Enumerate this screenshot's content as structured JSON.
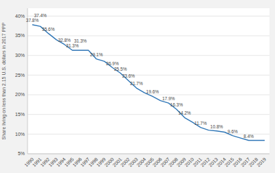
{
  "chart_data": {
    "type": "line",
    "y_label": "Share living on less than 2.15 U.S. dollars in 2017 PPP",
    "x": [
      1990,
      1991,
      1992,
      1993,
      1994,
      1995,
      1996,
      1997,
      1998,
      1999,
      2000,
      2001,
      2002,
      2003,
      2004,
      2005,
      2006,
      2007,
      2008,
      2009,
      2010,
      2011,
      2012,
      2013,
      2014,
      2015,
      2016,
      2017,
      2018,
      2019
    ],
    "values": [
      37.8,
      37.4,
      35.6,
      34.0,
      32.8,
      31.3,
      31.3,
      31.3,
      29.1,
      28.5,
      26.9,
      25.5,
      23.6,
      21.7,
      20.5,
      19.6,
      18.5,
      17.9,
      16.3,
      14.2,
      13.0,
      11.7,
      11.0,
      10.8,
      10.5,
      9.6,
      9.0,
      8.4,
      8.4,
      8.4
    ],
    "value_labels": [
      "37.8%",
      "37.4%",
      "35.6%",
      null,
      "32.8%",
      "31.3%",
      "31.3%",
      null,
      "29.1%",
      null,
      "26.9%",
      "25.5%",
      "23.6%",
      "21.7%",
      null,
      "19.6%",
      null,
      "17.9%",
      "16.3%",
      "14.2%",
      null,
      "11.7%",
      null,
      "10.8%",
      null,
      "9.6%",
      null,
      "8.4%",
      null,
      null
    ],
    "data_labels": true,
    "color": "#2e75b6",
    "xlim": [
      1989.4,
      2019.6
    ],
    "xticks": [
      1990,
      1991,
      1992,
      1993,
      1994,
      1995,
      1996,
      1997,
      1998,
      1999,
      2000,
      2001,
      2002,
      2003,
      2004,
      2005,
      2006,
      2007,
      2008,
      2009,
      2010,
      2011,
      2012,
      2013,
      2014,
      2015,
      2016,
      2017,
      2018,
      2019
    ],
    "ylim": [
      5,
      42
    ],
    "yticks": [
      {
        "value": 5,
        "label": "5%"
      },
      {
        "value": 10,
        "label": "10%"
      },
      {
        "value": 15,
        "label": "15%"
      },
      {
        "value": 20,
        "label": "20%"
      },
      {
        "value": 25,
        "label": "25%"
      },
      {
        "value": 30,
        "label": "30%"
      },
      {
        "value": 35,
        "label": "35%"
      },
      {
        "value": 40,
        "label": "40%"
      }
    ],
    "grid": true
  }
}
